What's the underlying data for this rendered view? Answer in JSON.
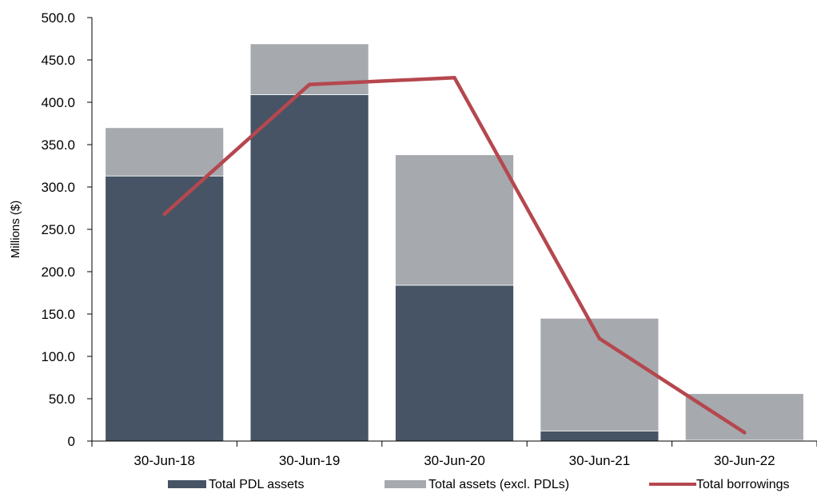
{
  "chart_data": {
    "type": "bar",
    "stacked": true,
    "categories": [
      "30-Jun-18",
      "30-Jun-19",
      "30-Jun-20",
      "30-Jun-21",
      "30-Jun-22"
    ],
    "series": [
      {
        "name": "Total PDL assets",
        "kind": "bar",
        "color": "#465465",
        "values": [
          313,
          409,
          184,
          12,
          1
        ]
      },
      {
        "name": "Total assets (excl. PDLs)",
        "kind": "bar",
        "color": "#a6a9ad",
        "values": [
          57,
          60,
          154,
          133,
          55
        ]
      },
      {
        "name": "Total borrowings",
        "kind": "line",
        "color": "#b5474f",
        "values": [
          268,
          421,
          429,
          121,
          10
        ]
      }
    ],
    "ylabel": "Millions ($)",
    "ylim": [
      0,
      500
    ],
    "yticks": [
      "0",
      "50.0",
      "100.0",
      "150.0",
      "200.0",
      "250.0",
      "300.0",
      "350.0",
      "400.0",
      "450.0",
      "500.0"
    ],
    "grid": false,
    "legend": "bottom"
  }
}
